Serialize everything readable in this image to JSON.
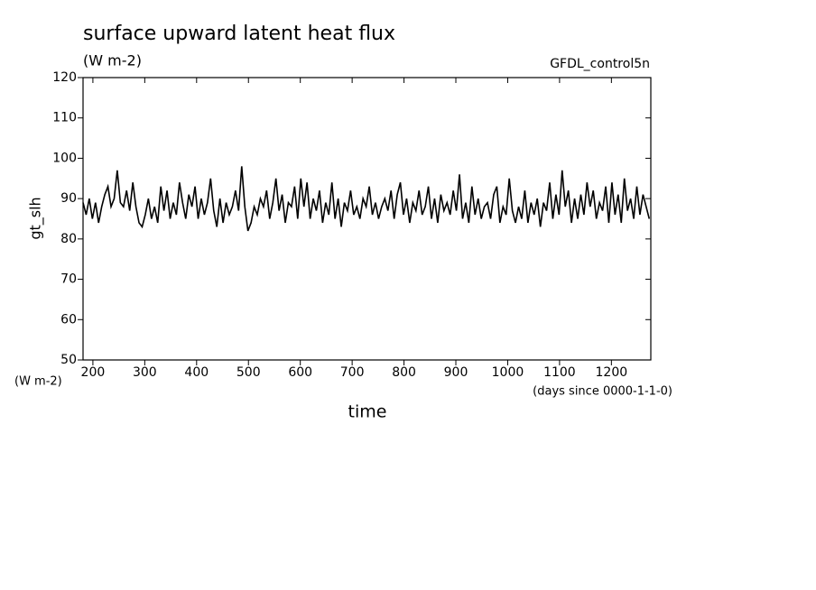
{
  "chart_data": {
    "type": "line",
    "title": "surface upward latent heat flux",
    "subtitle": "(W m-2)",
    "dataset_label": "GFDL_control5n",
    "y_label": "gt_slh",
    "y_units": "(W m-2)",
    "x_label": "time",
    "x_units": "(days since 0000-1-1-0)",
    "color": "#000000",
    "xlim": [
      181,
      1276
    ],
    "ylim": [
      50,
      120
    ],
    "xticks": [
      200,
      300,
      400,
      500,
      600,
      700,
      800,
      900,
      1000,
      1100,
      1200
    ],
    "yticks": [
      50,
      60,
      70,
      80,
      90,
      100,
      110,
      120
    ],
    "x": [
      181,
      187,
      193,
      199,
      205,
      211,
      217,
      223,
      229,
      235,
      241,
      247,
      253,
      259,
      265,
      271,
      277,
      283,
      289,
      295,
      301,
      307,
      313,
      319,
      325,
      331,
      337,
      343,
      349,
      355,
      361,
      367,
      373,
      379,
      385,
      391,
      397,
      403,
      409,
      415,
      421,
      427,
      433,
      439,
      445,
      451,
      457,
      463,
      469,
      475,
      481,
      487,
      493,
      499,
      505,
      511,
      517,
      523,
      529,
      535,
      541,
      547,
      553,
      559,
      565,
      571,
      577,
      583,
      589,
      595,
      601,
      607,
      613,
      619,
      625,
      631,
      637,
      643,
      649,
      655,
      661,
      667,
      673,
      679,
      685,
      691,
      697,
      703,
      709,
      715,
      721,
      727,
      733,
      739,
      745,
      751,
      757,
      763,
      769,
      775,
      781,
      787,
      793,
      799,
      805,
      811,
      817,
      823,
      829,
      835,
      841,
      847,
      853,
      859,
      865,
      871,
      877,
      883,
      889,
      895,
      901,
      907,
      913,
      919,
      925,
      931,
      937,
      943,
      949,
      955,
      961,
      967,
      973,
      979,
      985,
      991,
      997,
      1003,
      1009,
      1015,
      1021,
      1027,
      1033,
      1039,
      1045,
      1051,
      1057,
      1063,
      1069,
      1075,
      1081,
      1087,
      1093,
      1099,
      1105,
      1111,
      1117,
      1123,
      1129,
      1135,
      1141,
      1147,
      1153,
      1159,
      1165,
      1171,
      1177,
      1183,
      1189,
      1195,
      1201,
      1207,
      1213,
      1219,
      1225,
      1231,
      1237,
      1243,
      1249,
      1255,
      1261,
      1267,
      1273
    ],
    "values": [
      89,
      86,
      90,
      85,
      89,
      84,
      88,
      91,
      93,
      88,
      90,
      97,
      89,
      88,
      92,
      87,
      94,
      88,
      84,
      83,
      86,
      90,
      85,
      88,
      84,
      93,
      87,
      92,
      85,
      89,
      86,
      94,
      89,
      85,
      91,
      88,
      93,
      85,
      90,
      86,
      89,
      95,
      87,
      83,
      90,
      84,
      89,
      86,
      88,
      92,
      87,
      98,
      88,
      82,
      84,
      88,
      86,
      90,
      88,
      92,
      85,
      89,
      95,
      87,
      91,
      84,
      89,
      88,
      93,
      85,
      95,
      88,
      94,
      85,
      90,
      87,
      92,
      84,
      89,
      86,
      94,
      85,
      90,
      83,
      89,
      87,
      92,
      86,
      88,
      85,
      90,
      88,
      93,
      86,
      89,
      85,
      88,
      90,
      87,
      92,
      85,
      91,
      94,
      86,
      90,
      84,
      89,
      87,
      92,
      86,
      88,
      93,
      85,
      90,
      84,
      91,
      87,
      89,
      86,
      92,
      87,
      96,
      85,
      89,
      84,
      93,
      86,
      90,
      85,
      88,
      89,
      85,
      91,
      93,
      84,
      88,
      86,
      95,
      87,
      84,
      88,
      85,
      92,
      84,
      89,
      86,
      90,
      83,
      89,
      87,
      94,
      85,
      91,
      86,
      97,
      88,
      92,
      84,
      90,
      85,
      91,
      86,
      94,
      88,
      92,
      85,
      89,
      87,
      93,
      84,
      94,
      86,
      91,
      84,
      95,
      87,
      90,
      85,
      93,
      86,
      91,
      88,
      85
    ]
  }
}
